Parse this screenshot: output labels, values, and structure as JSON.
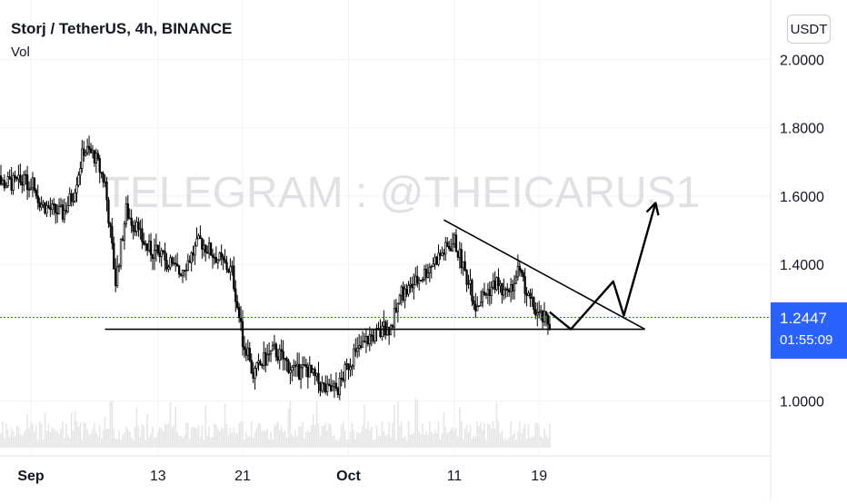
{
  "header": {
    "title": "Storj / TetherUS, 4h, BINANCE",
    "volume_label": "Vol",
    "currency": "USDT"
  },
  "watermark": "TELEGRAM : @THEICARUS1",
  "price_badge": {
    "price": "1.2447",
    "countdown": "01:55:09"
  },
  "colors": {
    "accent": "#2962ff",
    "up": "#000000",
    "volume": "#e6e6e6",
    "grid": "#f0f3fa"
  },
  "chart_data": {
    "type": "candlestick",
    "title": "Storj / TetherUS, 4h, BINANCE",
    "ylim": [
      0.9,
      2.05
    ],
    "y_ticks": [
      1.0,
      1.4,
      1.6,
      1.8,
      2.0
    ],
    "y_tick_labels": [
      "1.0000",
      "1.4000",
      "1.6000",
      "1.8000",
      "2.0000"
    ],
    "x_tick_labels": [
      "Sep",
      "13",
      "21",
      "Oct",
      "11",
      "19"
    ],
    "x_tick_dates": [
      "2021-09-01",
      "2021-09-13",
      "2021-09-21",
      "2021-10-01",
      "2021-10-11",
      "2021-10-19"
    ],
    "last_price": 1.2447,
    "close_path": [
      [
        "2021-09-01",
        1.64
      ],
      [
        "2021-09-02",
        1.58
      ],
      [
        "2021-09-03",
        1.56
      ],
      [
        "2021-09-04",
        1.55
      ],
      [
        "2021-09-05",
        1.61
      ],
      [
        "2021-09-06",
        1.74
      ],
      [
        "2021-09-07",
        1.72
      ],
      [
        "2021-09-08",
        1.64
      ],
      [
        "2021-09-09",
        1.35
      ],
      [
        "2021-09-10",
        1.56
      ],
      [
        "2021-09-11",
        1.5
      ],
      [
        "2021-09-12",
        1.45
      ],
      [
        "2021-09-13",
        1.43
      ],
      [
        "2021-09-14",
        1.4
      ],
      [
        "2021-09-15",
        1.38
      ],
      [
        "2021-09-16",
        1.42
      ],
      [
        "2021-09-17",
        1.47
      ],
      [
        "2021-09-18",
        1.44
      ],
      [
        "2021-09-19",
        1.41
      ],
      [
        "2021-09-20",
        1.38
      ],
      [
        "2021-09-21",
        1.18
      ],
      [
        "2021-09-22",
        1.08
      ],
      [
        "2021-09-23",
        1.12
      ],
      [
        "2021-09-24",
        1.15
      ],
      [
        "2021-09-25",
        1.12
      ],
      [
        "2021-09-26",
        1.08
      ],
      [
        "2021-09-27",
        1.1
      ],
      [
        "2021-09-28",
        1.06
      ],
      [
        "2021-09-29",
        1.03
      ],
      [
        "2021-09-30",
        1.04
      ],
      [
        "2021-10-01",
        1.11
      ],
      [
        "2021-10-02",
        1.15
      ],
      [
        "2021-10-03",
        1.19
      ],
      [
        "2021-10-04",
        1.2
      ],
      [
        "2021-10-05",
        1.22
      ],
      [
        "2021-10-06",
        1.31
      ],
      [
        "2021-10-07",
        1.34
      ],
      [
        "2021-10-08",
        1.37
      ],
      [
        "2021-10-09",
        1.41
      ],
      [
        "2021-10-10",
        1.44
      ],
      [
        "2021-10-11",
        1.47
      ],
      [
        "2021-10-12",
        1.38
      ],
      [
        "2021-10-13",
        1.28
      ],
      [
        "2021-10-14",
        1.32
      ],
      [
        "2021-10-15",
        1.35
      ],
      [
        "2021-10-16",
        1.3
      ],
      [
        "2021-10-17",
        1.38
      ],
      [
        "2021-10-18",
        1.3
      ],
      [
        "2021-10-19",
        1.25
      ],
      [
        "2021-10-20",
        1.23
      ]
    ],
    "annotations": {
      "support_line": {
        "from": [
          "2021-09-08",
          1.21
        ],
        "to": [
          "2021-10-29",
          1.21
        ]
      },
      "resistance_line": {
        "from": [
          "2021-10-10",
          1.53
        ],
        "to": [
          "2021-10-29",
          1.21
        ]
      },
      "projection_path": [
        [
          "2021-10-20",
          1.26
        ],
        [
          "2021-10-22",
          1.21
        ],
        [
          "2021-10-26",
          1.35
        ],
        [
          "2021-10-27",
          1.25
        ],
        [
          "2021-10-30",
          1.58
        ]
      ]
    }
  }
}
